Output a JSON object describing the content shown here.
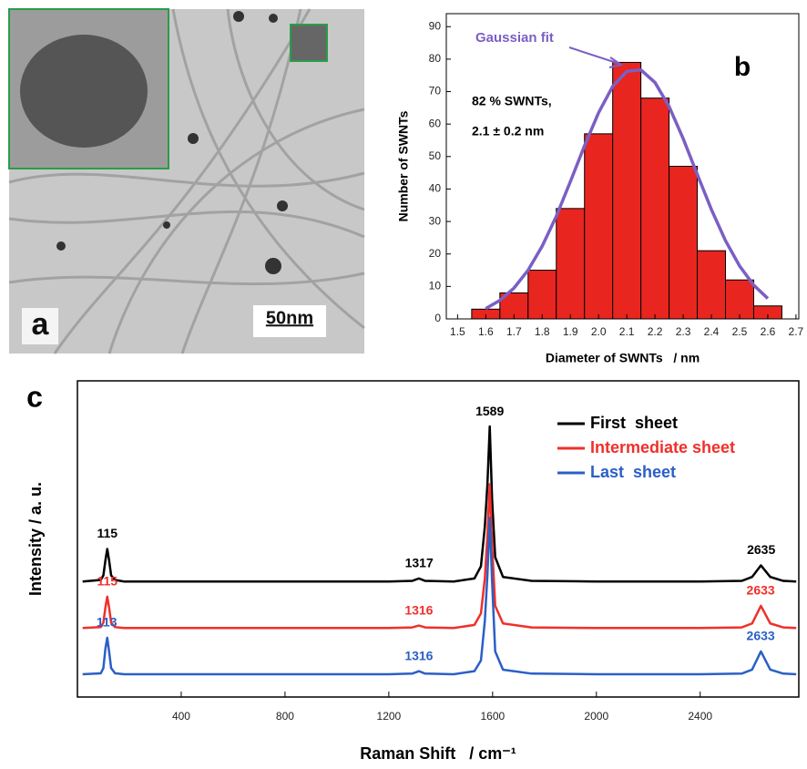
{
  "image_panel": {
    "label": "a",
    "scale_bar": "50nm"
  },
  "chart_data": [
    {
      "type": "histogram",
      "panel_label": "b",
      "xlabel": "Diameter of SWNTs   / nm",
      "ylabel": "Number of SWNTs",
      "bins": [
        1.55,
        1.65,
        1.75,
        1.85,
        1.95,
        2.05,
        2.15,
        2.25,
        2.35,
        2.45,
        2.55,
        2.65
      ],
      "counts": [
        3,
        8,
        15,
        34,
        57,
        79,
        68,
        47,
        21,
        12,
        4
      ],
      "color": "#e8251f",
      "xlim": [
        1.46,
        2.71
      ],
      "xticks": [
        1.5,
        1.6,
        1.7,
        1.8,
        1.9,
        {
          "value": 2,
          "label": "2.0"
        },
        2.1,
        2.2,
        2.3,
        2.4,
        2.5,
        2.6,
        2.7
      ],
      "ylim": [
        0,
        94
      ],
      "yticks": [
        0,
        10,
        20,
        30,
        40,
        50,
        60,
        70,
        80,
        90
      ],
      "fit": {
        "name": "Gaussian fit",
        "color": "#7b5fc4",
        "x": [
          1.6,
          1.65,
          1.7,
          1.75,
          1.8,
          1.85,
          1.9,
          1.95,
          2.0,
          2.05,
          2.1,
          2.15,
          2.2,
          2.25,
          2.3,
          2.35,
          2.4,
          2.45,
          2.5,
          2.55,
          2.6
        ],
        "values": [
          3.2,
          5.7,
          9.5,
          15.0,
          22.4,
          31.6,
          42.3,
          53.3,
          63.5,
          71.6,
          76.2,
          76.7,
          72.8,
          65.4,
          55.5,
          44.5,
          33.7,
          24.1,
          16.3,
          10.4,
          6.3
        ]
      },
      "annotations": [
        "82 % SWNTs,",
        "2.1 ± 0.2 nm"
      ]
    },
    {
      "type": "line",
      "panel_label": "c",
      "xlabel": "Raman Shift   / cm⁻¹",
      "ylabel": "Intensity / a. u.",
      "x": [
        20,
        90,
        100,
        108,
        115,
        122,
        130,
        145,
        180,
        400,
        800,
        1200,
        1290,
        1316,
        1340,
        1450,
        1530,
        1555,
        1570,
        1580,
        1589,
        1598,
        1610,
        1640,
        1750,
        2000,
        2400,
        2560,
        2600,
        2634,
        2670,
        2720,
        2770
      ],
      "xlim": [
        0,
        2780
      ],
      "xticks": [
        400,
        800,
        1200,
        1600,
        2000,
        2400
      ],
      "ylim": [
        0,
        10.4
      ],
      "series": [
        {
          "name": "First  sheet",
          "color": "#000000",
          "peak_labels": [
            "115",
            "1317",
            "1589",
            "2635"
          ],
          "values": [
            3.8,
            3.85,
            4.0,
            4.5,
            4.87,
            4.5,
            4.0,
            3.85,
            3.8,
            3.8,
            3.8,
            3.8,
            3.82,
            3.9,
            3.82,
            3.8,
            3.9,
            4.3,
            5.6,
            7.0,
            8.9,
            6.5,
            4.6,
            3.95,
            3.82,
            3.8,
            3.8,
            3.82,
            3.95,
            4.33,
            3.95,
            3.82,
            3.8
          ]
        },
        {
          "name": "Intermediate sheet",
          "color": "#f0302a",
          "peak_labels": [
            "115",
            "1316",
            "2633"
          ],
          "values": [
            2.27,
            2.3,
            2.45,
            2.95,
            3.3,
            2.95,
            2.45,
            2.3,
            2.27,
            2.27,
            2.27,
            2.27,
            2.29,
            2.35,
            2.29,
            2.27,
            2.37,
            2.75,
            3.9,
            5.3,
            7.0,
            5.0,
            3.0,
            2.42,
            2.29,
            2.27,
            2.27,
            2.29,
            2.42,
            3.0,
            2.42,
            2.29,
            2.27
          ]
        },
        {
          "name": "Last  sheet",
          "color": "#2b5fc6",
          "peak_labels": [
            "113",
            "1316",
            "2633"
          ],
          "values": [
            0.75,
            0.78,
            0.95,
            1.6,
            1.95,
            1.5,
            0.95,
            0.78,
            0.75,
            0.75,
            0.75,
            0.75,
            0.77,
            0.85,
            0.77,
            0.75,
            0.85,
            1.2,
            2.5,
            4.0,
            5.9,
            3.8,
            1.5,
            0.9,
            0.77,
            0.75,
            0.75,
            0.77,
            0.9,
            1.5,
            0.9,
            0.77,
            0.75
          ]
        }
      ]
    }
  ]
}
